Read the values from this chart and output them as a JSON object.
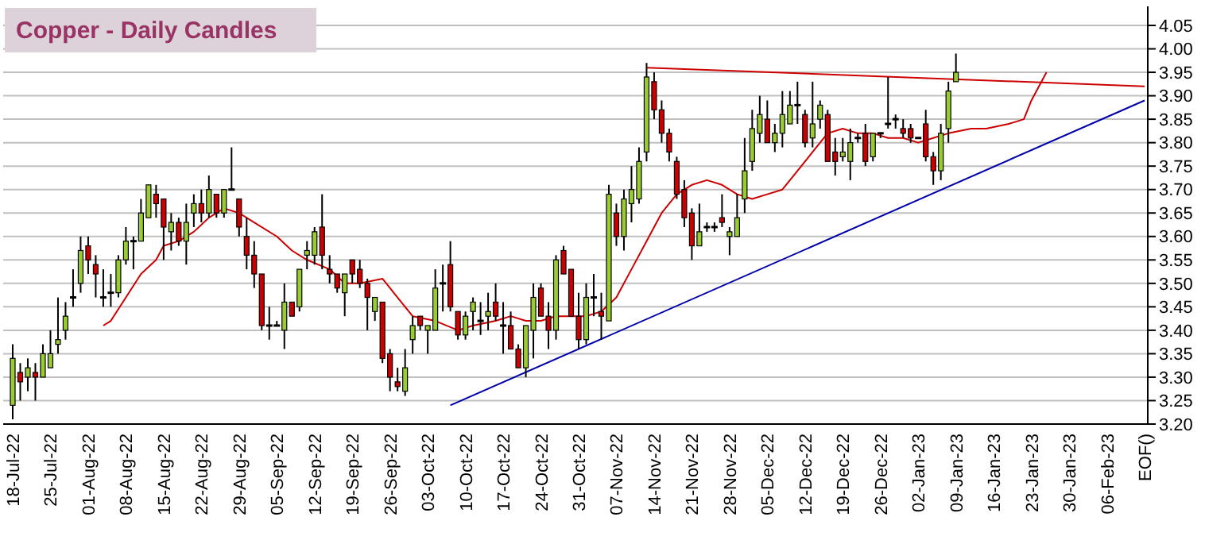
{
  "chart_data": {
    "type": "candlestick",
    "title": "Copper - Daily Candles",
    "categories": [
      "18-Jul-22",
      null,
      null,
      null,
      null,
      "25-Jul-22",
      null,
      null,
      null,
      null,
      "01-Aug-22",
      null,
      null,
      null,
      null,
      "08-Aug-22",
      null,
      null,
      null,
      null,
      "15-Aug-22",
      null,
      null,
      null,
      null,
      "22-Aug-22",
      null,
      null,
      null,
      null,
      "29-Aug-22",
      null,
      null,
      null,
      null,
      "05-Sep-22",
      null,
      null,
      null,
      null,
      "12-Sep-22",
      null,
      null,
      null,
      null,
      "19-Sep-22",
      null,
      null,
      null,
      null,
      "26-Sep-22",
      null,
      null,
      null,
      null,
      "03-Oct-22",
      null,
      null,
      null,
      null,
      "10-Oct-22",
      null,
      null,
      null,
      null,
      "17-Oct-22",
      null,
      null,
      null,
      null,
      "24-Oct-22",
      null,
      null,
      null,
      null,
      "31-Oct-22",
      null,
      null,
      null,
      null,
      "07-Nov-22",
      null,
      null,
      null,
      null,
      "14-Nov-22",
      null,
      null,
      null,
      null,
      "21-Nov-22",
      null,
      null,
      null,
      null,
      "28-Nov-22",
      null,
      null,
      null,
      null,
      "05-Dec-22",
      null,
      null,
      null,
      null,
      "12-Dec-22",
      null,
      null,
      null,
      null,
      "19-Dec-22",
      null,
      null,
      null,
      null,
      "26-Dec-22",
      null,
      null,
      null,
      null,
      "02-Jan-23",
      null,
      null,
      null,
      null,
      "09-Jan-23",
      null,
      null,
      null,
      null,
      "16-Jan-23",
      null,
      null,
      null,
      null,
      "23-Jan-23",
      null,
      null,
      null,
      null,
      "30-Jan-23",
      null,
      null,
      null,
      null,
      "06-Feb-23",
      null,
      null,
      null,
      null,
      "EOF()"
    ],
    "ohlc": [
      [
        3.24,
        3.37,
        3.21,
        3.34
      ],
      [
        3.31,
        3.33,
        3.25,
        3.29
      ],
      [
        3.3,
        3.34,
        3.27,
        3.32
      ],
      [
        3.31,
        3.33,
        3.25,
        3.3
      ],
      [
        3.3,
        3.37,
        3.3,
        3.35
      ],
      [
        3.32,
        3.4,
        3.32,
        3.35
      ],
      [
        3.37,
        3.47,
        3.35,
        3.38
      ],
      [
        3.4,
        3.46,
        3.38,
        3.43
      ],
      [
        3.47,
        3.53,
        3.45,
        3.47
      ],
      [
        3.5,
        3.6,
        3.48,
        3.57
      ],
      [
        3.58,
        3.6,
        3.52,
        3.55
      ],
      [
        3.54,
        3.56,
        3.47,
        3.52
      ],
      [
        3.47,
        3.53,
        3.45,
        3.47
      ],
      [
        3.48,
        3.52,
        3.45,
        3.48
      ],
      [
        3.48,
        3.56,
        3.47,
        3.55
      ],
      [
        3.55,
        3.62,
        3.54,
        3.59
      ],
      [
        3.59,
        3.6,
        3.53,
        3.59
      ],
      [
        3.59,
        3.68,
        3.59,
        3.65
      ],
      [
        3.64,
        3.71,
        3.64,
        3.71
      ],
      [
        3.69,
        3.71,
        3.64,
        3.67
      ],
      [
        3.68,
        3.68,
        3.55,
        3.62
      ],
      [
        3.61,
        3.65,
        3.57,
        3.63
      ],
      [
        3.63,
        3.64,
        3.58,
        3.59
      ],
      [
        3.59,
        3.67,
        3.54,
        3.63
      ],
      [
        3.65,
        3.69,
        3.62,
        3.67
      ],
      [
        3.67,
        3.7,
        3.63,
        3.65
      ],
      [
        3.65,
        3.73,
        3.64,
        3.7
      ],
      [
        3.69,
        3.69,
        3.64,
        3.65
      ],
      [
        3.65,
        3.7,
        3.64,
        3.7
      ],
      [
        3.7,
        3.79,
        3.7,
        3.7
      ],
      [
        3.68,
        3.68,
        3.6,
        3.62
      ],
      [
        3.6,
        3.64,
        3.53,
        3.56
      ],
      [
        3.56,
        3.59,
        3.49,
        3.52
      ],
      [
        3.52,
        3.52,
        3.4,
        3.41
      ],
      [
        3.41,
        3.45,
        3.38,
        3.41
      ],
      [
        3.41,
        3.42,
        3.41,
        3.41
      ],
      [
        3.4,
        3.5,
        3.36,
        3.46
      ],
      [
        3.46,
        3.46,
        3.43,
        3.43
      ],
      [
        3.45,
        3.53,
        3.44,
        3.53
      ],
      [
        3.56,
        3.59,
        3.53,
        3.57
      ],
      [
        3.56,
        3.62,
        3.54,
        3.61
      ],
      [
        3.62,
        3.69,
        3.53,
        3.56
      ],
      [
        3.53,
        3.56,
        3.5,
        3.52
      ],
      [
        3.52,
        3.52,
        3.48,
        3.49
      ],
      [
        3.48,
        3.52,
        3.43,
        3.52
      ],
      [
        3.55,
        3.55,
        3.5,
        3.52
      ],
      [
        3.53,
        3.55,
        3.49,
        3.5
      ],
      [
        3.5,
        3.51,
        3.4,
        3.47
      ],
      [
        3.44,
        3.47,
        3.42,
        3.47
      ],
      [
        3.46,
        3.46,
        3.33,
        3.34
      ],
      [
        3.35,
        3.36,
        3.27,
        3.3
      ],
      [
        3.29,
        3.32,
        3.27,
        3.28
      ],
      [
        3.27,
        3.36,
        3.26,
        3.32
      ],
      [
        3.38,
        3.43,
        3.35,
        3.41
      ],
      [
        3.43,
        3.43,
        3.4,
        3.41
      ],
      [
        3.4,
        3.41,
        3.35,
        3.41
      ],
      [
        3.4,
        3.53,
        3.4,
        3.49
      ],
      [
        3.5,
        3.54,
        3.44,
        3.5
      ],
      [
        3.54,
        3.59,
        3.44,
        3.45
      ],
      [
        3.44,
        3.44,
        3.38,
        3.39
      ],
      [
        3.39,
        3.44,
        3.38,
        3.43
      ],
      [
        3.44,
        3.47,
        3.4,
        3.46
      ],
      [
        3.42,
        3.46,
        3.39,
        3.42
      ],
      [
        3.43,
        3.48,
        3.4,
        3.44
      ],
      [
        3.46,
        3.5,
        3.42,
        3.43
      ],
      [
        3.41,
        3.46,
        3.35,
        3.41
      ],
      [
        3.41,
        3.44,
        3.36,
        3.36
      ],
      [
        3.36,
        3.37,
        3.32,
        3.32
      ],
      [
        3.32,
        3.41,
        3.3,
        3.41
      ],
      [
        3.4,
        3.5,
        3.34,
        3.47
      ],
      [
        3.49,
        3.5,
        3.43,
        3.43
      ],
      [
        3.43,
        3.46,
        3.36,
        3.4
      ],
      [
        3.4,
        3.56,
        3.38,
        3.55
      ],
      [
        3.57,
        3.58,
        3.52,
        3.52
      ],
      [
        3.53,
        3.53,
        3.43,
        3.43
      ],
      [
        3.43,
        3.48,
        3.36,
        3.38
      ],
      [
        3.38,
        3.5,
        3.37,
        3.47
      ],
      [
        3.47,
        3.52,
        3.43,
        3.47
      ],
      [
        3.44,
        3.48,
        3.38,
        3.43
      ],
      [
        3.42,
        3.71,
        3.42,
        3.69
      ],
      [
        3.65,
        3.67,
        3.58,
        3.6
      ],
      [
        3.6,
        3.7,
        3.57,
        3.68
      ],
      [
        3.67,
        3.75,
        3.63,
        3.7
      ],
      [
        3.68,
        3.79,
        3.67,
        3.76
      ],
      [
        3.78,
        3.97,
        3.76,
        3.94
      ],
      [
        3.93,
        3.95,
        3.85,
        3.87
      ],
      [
        3.87,
        3.89,
        3.8,
        3.82
      ],
      [
        3.82,
        3.83,
        3.76,
        3.78
      ],
      [
        3.76,
        3.77,
        3.68,
        3.69
      ],
      [
        3.7,
        3.72,
        3.62,
        3.64
      ],
      [
        3.65,
        3.66,
        3.55,
        3.58
      ],
      [
        3.58,
        3.67,
        3.58,
        3.61
      ],
      [
        3.62,
        3.63,
        3.61,
        3.62
      ],
      [
        3.62,
        3.63,
        3.61,
        3.62
      ],
      [
        3.64,
        3.69,
        3.62,
        3.63
      ],
      [
        3.6,
        3.62,
        3.56,
        3.61
      ],
      [
        3.6,
        3.69,
        3.6,
        3.64
      ],
      [
        3.68,
        3.81,
        3.65,
        3.74
      ],
      [
        3.76,
        3.87,
        3.74,
        3.83
      ],
      [
        3.82,
        3.9,
        3.8,
        3.86
      ],
      [
        3.85,
        3.89,
        3.8,
        3.8
      ],
      [
        3.8,
        3.84,
        3.78,
        3.82
      ],
      [
        3.82,
        3.91,
        3.79,
        3.86
      ],
      [
        3.84,
        3.91,
        3.84,
        3.88
      ],
      [
        3.88,
        3.93,
        3.84,
        3.88
      ],
      [
        3.86,
        3.87,
        3.79,
        3.8
      ],
      [
        3.81,
        3.93,
        3.79,
        3.84
      ],
      [
        3.85,
        3.89,
        3.83,
        3.88
      ],
      [
        3.86,
        3.87,
        3.76,
        3.76
      ],
      [
        3.78,
        3.81,
        3.73,
        3.76
      ],
      [
        3.77,
        3.81,
        3.76,
        3.78
      ],
      [
        3.76,
        3.83,
        3.72,
        3.8
      ],
      [
        3.81,
        3.82,
        3.8,
        3.81
      ],
      [
        3.82,
        3.84,
        3.75,
        3.76
      ],
      [
        3.77,
        3.82,
        3.76,
        3.82
      ],
      [
        3.82,
        3.82,
        3.81,
        3.82
      ],
      [
        3.84,
        3.94,
        3.83,
        3.84
      ],
      [
        3.85,
        3.86,
        3.83,
        3.85
      ],
      [
        3.83,
        3.85,
        3.81,
        3.82
      ],
      [
        3.83,
        3.84,
        3.8,
        3.81
      ],
      [
        3.81,
        3.81,
        3.81,
        3.81
      ],
      [
        3.84,
        3.87,
        3.76,
        3.77
      ],
      [
        3.77,
        3.78,
        3.71,
        3.74
      ],
      [
        3.74,
        3.84,
        3.72,
        3.82
      ],
      [
        3.83,
        3.93,
        3.8,
        3.91
      ],
      [
        3.93,
        3.99,
        3.93,
        3.95
      ],
      null,
      null,
      null,
      null,
      null,
      null,
      null,
      null,
      null,
      null,
      null,
      null,
      null,
      null,
      null,
      null,
      null,
      null,
      null,
      null,
      null,
      null,
      null,
      null,
      null
    ],
    "colors": [
      "#99cc33",
      "#cc0000",
      "#99cc33",
      "#cc0000",
      "#99cc33",
      "#99cc33",
      "#99cc33",
      "#99cc33",
      "#000000",
      "#99cc33",
      "#cc0000",
      "#cc0000",
      "#000000",
      "#000000",
      "#99cc33",
      "#99cc33",
      "#000000",
      "#99cc33",
      "#99cc33",
      "#cc0000",
      "#cc0000",
      "#99cc33",
      "#cc0000",
      "#99cc33",
      "#99cc33",
      "#cc0000",
      "#99cc33",
      "#cc0000",
      "#99cc33",
      "#000000",
      "#cc0000",
      "#cc0000",
      "#cc0000",
      "#cc0000",
      "#000000",
      "#000000",
      "#99cc33",
      "#cc0000",
      "#99cc33",
      "#99cc33",
      "#99cc33",
      "#cc0000",
      "#cc0000",
      "#cc0000",
      "#99cc33",
      "#cc0000",
      "#cc0000",
      "#cc0000",
      "#99cc33",
      "#cc0000",
      "#cc0000",
      "#cc0000",
      "#99cc33",
      "#99cc33",
      "#cc0000",
      "#99cc33",
      "#99cc33",
      "#000000",
      "#cc0000",
      "#cc0000",
      "#99cc33",
      "#99cc33",
      "#000000",
      "#99cc33",
      "#cc0000",
      "#000000",
      "#cc0000",
      "#cc0000",
      "#99cc33",
      "#99cc33",
      "#cc0000",
      "#cc0000",
      "#99cc33",
      "#cc0000",
      "#cc0000",
      "#cc0000",
      "#99cc33",
      "#000000",
      "#cc0000",
      "#99cc33",
      "#cc0000",
      "#99cc33",
      "#99cc33",
      "#99cc33",
      "#99cc33",
      "#cc0000",
      "#cc0000",
      "#cc0000",
      "#cc0000",
      "#cc0000",
      "#cc0000",
      "#99cc33",
      "#000000",
      "#000000",
      "#cc0000",
      "#99cc33",
      "#99cc33",
      "#99cc33",
      "#99cc33",
      "#99cc33",
      "#cc0000",
      "#99cc33",
      "#99cc33",
      "#99cc33",
      "#000000",
      "#cc0000",
      "#99cc33",
      "#99cc33",
      "#cc0000",
      "#cc0000",
      "#99cc33",
      "#99cc33",
      "#000000",
      "#cc0000",
      "#99cc33",
      "#000000",
      "#000000",
      "#000000",
      "#cc0000",
      "#cc0000",
      "#000000",
      "#cc0000",
      "#cc0000",
      "#99cc33",
      "#99cc33",
      "#99cc33",
      null,
      null,
      null,
      null,
      null,
      null,
      null,
      null,
      null,
      null,
      null,
      null,
      null,
      null,
      null,
      null,
      null,
      null,
      null,
      null,
      null,
      null,
      null,
      null,
      null
    ],
    "series": [
      {
        "type": "line",
        "color": "#cc0000",
        "values": [
          null,
          null,
          null,
          null,
          null,
          null,
          null,
          null,
          null,
          null,
          null,
          null,
          3.41,
          3.42,
          null,
          3.47,
          null,
          3.52,
          null,
          3.55,
          3.58,
          null,
          3.59,
          null,
          3.61,
          null,
          3.64,
          null,
          3.66,
          null,
          3.65,
          null,
          3.63,
          null,
          null,
          3.6,
          null,
          3.57,
          null,
          3.55,
          null,
          null,
          3.53,
          null,
          3.5,
          null,
          3.5,
          null,
          null,
          3.51,
          null,
          3.47,
          null,
          3.43,
          null,
          null,
          3.42,
          null,
          null,
          3.4,
          null,
          3.41,
          null,
          null,
          3.42,
          null,
          3.43,
          null,
          3.42,
          null,
          3.42,
          null,
          3.43,
          null,
          3.43,
          null,
          3.43,
          null,
          3.44,
          null,
          3.47,
          null,
          3.53,
          null,
          3.59,
          null,
          3.65,
          null,
          3.69,
          null,
          3.71,
          null,
          3.72,
          null,
          3.71,
          null,
          3.69,
          null,
          3.68,
          null,
          3.69,
          null,
          3.7,
          null,
          3.74,
          null,
          3.78,
          null,
          3.82,
          null,
          3.83,
          null,
          3.82,
          null,
          3.82,
          null,
          3.81,
          null,
          3.81,
          null,
          3.8,
          null,
          3.81,
          null,
          3.82,
          null,
          null,
          3.83,
          null,
          3.83,
          null,
          null,
          3.84,
          null,
          3.85,
          3.89,
          null,
          3.95,
          null,
          null,
          null,
          null,
          null,
          null,
          null,
          null,
          null,
          null,
          null,
          null,
          null
        ]
      },
      {
        "type": "line",
        "color": "#cc0000",
        "values": [
          null,
          null,
          null,
          null,
          null,
          null,
          null,
          null,
          null,
          null,
          null,
          null,
          null,
          null,
          null,
          null,
          null,
          null,
          null,
          null,
          null,
          null,
          null,
          null,
          null,
          null,
          null,
          null,
          null,
          null,
          null,
          null,
          null,
          null,
          null,
          null,
          null,
          null,
          null,
          null,
          null,
          null,
          null,
          null,
          null,
          null,
          null,
          null,
          null,
          null,
          null,
          null,
          null,
          null,
          null,
          null,
          null,
          null,
          null,
          null,
          null,
          null,
          null,
          null,
          null,
          null,
          null,
          null,
          null,
          null,
          null,
          null,
          null,
          null,
          null,
          null,
          null,
          null,
          null,
          null,
          null,
          null,
          null,
          null,
          3.96,
          null,
          null,
          null,
          null,
          null,
          null,
          null,
          null,
          null,
          null,
          null,
          null,
          null,
          null,
          null,
          null,
          null,
          null,
          null,
          null,
          null,
          null,
          null,
          null,
          null,
          null,
          null,
          null,
          null,
          null,
          null,
          null,
          null,
          null,
          null,
          null,
          null,
          null,
          null,
          null,
          null,
          null,
          null,
          null,
          null,
          null,
          null,
          null,
          null,
          null,
          null,
          null,
          null,
          null,
          null,
          null,
          null,
          null,
          null,
          null,
          null,
          null,
          null,
          null,
          null,
          3.92
        ]
      },
      {
        "type": "line",
        "color": "#0000aa",
        "values": [
          null,
          null,
          null,
          null,
          null,
          null,
          null,
          null,
          null,
          null,
          null,
          null,
          null,
          null,
          null,
          null,
          null,
          null,
          null,
          null,
          null,
          null,
          null,
          null,
          null,
          null,
          null,
          null,
          null,
          null,
          null,
          null,
          null,
          null,
          null,
          null,
          null,
          null,
          null,
          null,
          null,
          null,
          null,
          null,
          null,
          null,
          null,
          null,
          null,
          null,
          null,
          null,
          null,
          null,
          null,
          null,
          null,
          null,
          3.24,
          null,
          null,
          null,
          null,
          null,
          null,
          null,
          null,
          null,
          null,
          null,
          null,
          null,
          null,
          null,
          null,
          null,
          null,
          null,
          null,
          null,
          null,
          null,
          null,
          null,
          null,
          null,
          null,
          null,
          null,
          null,
          null,
          null,
          null,
          null,
          null,
          null,
          null,
          null,
          null,
          null,
          null,
          null,
          null,
          null,
          null,
          null,
          null,
          null,
          null,
          null,
          null,
          null,
          null,
          null,
          null,
          null,
          null,
          null,
          null,
          null,
          null,
          null,
          null,
          null,
          null,
          null,
          null,
          null,
          null,
          null,
          null,
          null,
          null,
          null,
          null,
          null,
          null,
          null,
          null,
          null,
          null,
          null,
          null,
          null,
          null,
          null,
          null,
          null,
          null,
          null,
          3.89
        ]
      }
    ],
    "ylim": [
      3.2,
      4.05
    ],
    "yticks": [
      {
        "value": 3.2,
        "label": "3.20"
      },
      3.25,
      {
        "value": 3.3,
        "label": "3.30"
      },
      3.35,
      {
        "value": 3.4,
        "label": "3.40"
      },
      3.45,
      {
        "value": 3.5,
        "label": "3.50"
      },
      3.55,
      {
        "value": 3.6,
        "label": "3.60"
      },
      3.65,
      {
        "value": 3.7,
        "label": "3.70"
      },
      3.75,
      {
        "value": 3.8,
        "label": "3.80"
      },
      3.85,
      {
        "value": 3.9,
        "label": "3.90"
      },
      3.95,
      {
        "value": 4.0,
        "label": "4.00"
      },
      4.05
    ],
    "grid": "y"
  }
}
